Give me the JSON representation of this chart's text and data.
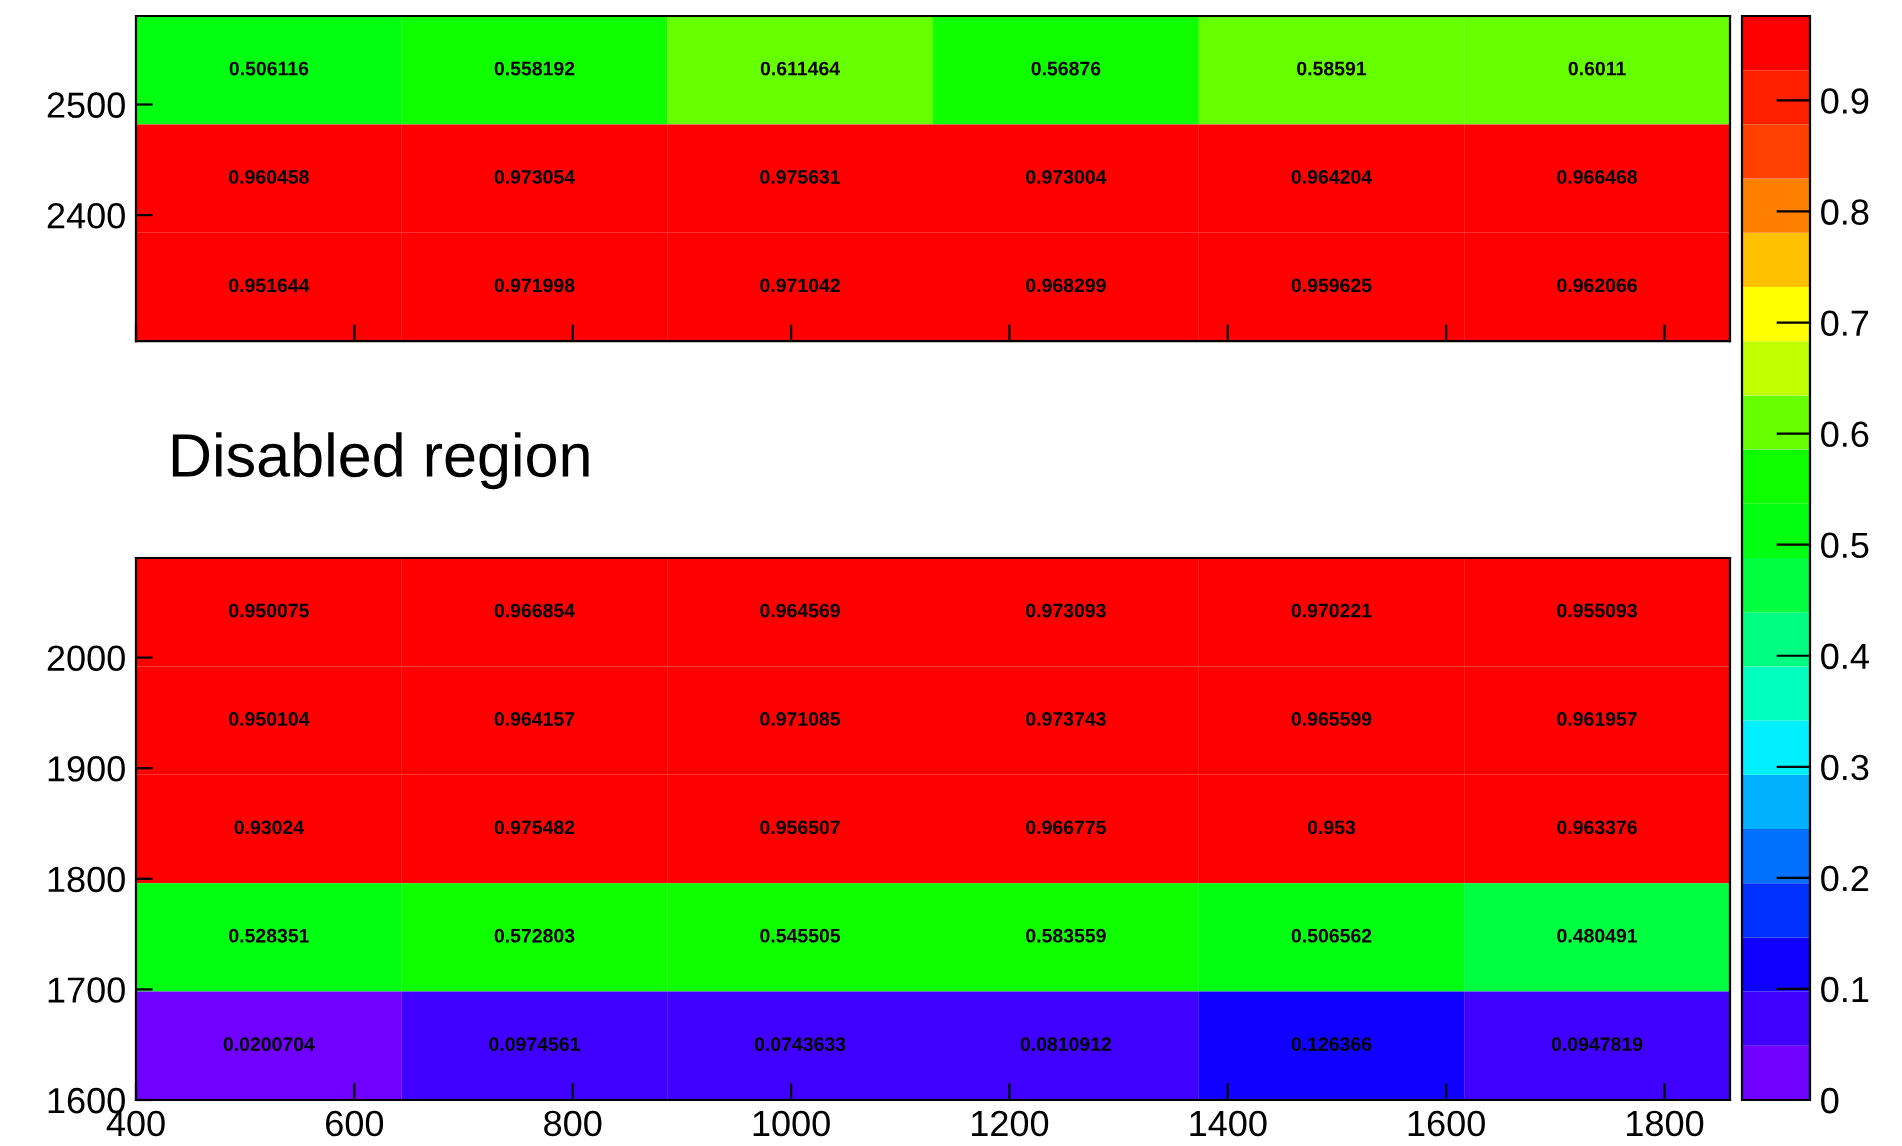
{
  "chart_data": [
    {
      "type": "heatmap",
      "x": [
        522,
        765,
        1008,
        1252,
        1495,
        1738
      ],
      "y": [
        2531,
        2433,
        2335
      ],
      "xlim": [
        400,
        1860
      ],
      "ylim": [
        2286,
        2580
      ],
      "xticks": [
        400,
        600,
        800,
        1000,
        1200,
        1400,
        1600,
        1800
      ],
      "yticks": [
        2400,
        2500
      ],
      "tick_labels": "y",
      "cells": [
        [
          0.506116,
          0.558192,
          0.611464,
          0.56876,
          0.58591,
          0.6011
        ],
        [
          0.960458,
          0.973054,
          0.975631,
          0.973004,
          0.964204,
          0.966468
        ],
        [
          0.951644,
          0.971998,
          0.971042,
          0.968299,
          0.959625,
          0.962066
        ]
      ],
      "data_labels": true,
      "colors": [
        "#7000ff",
        "#4000ff",
        "#1000ff",
        "#0030ff",
        "#0070ff",
        "#00b0ff",
        "#00f0ff",
        "#00ffc0",
        "#00ff80",
        "#00ff40",
        "#00ff10",
        "#10ff00",
        "#66ff00",
        "#c0ff00",
        "#ffff00",
        "#ffc000",
        "#ff8000",
        "#ff4000",
        "#ff2000",
        "#ff0000"
      ],
      "annotations": [
        "Disabled region"
      ]
    },
    {
      "type": "heatmap",
      "x": [
        522,
        765,
        1008,
        1252,
        1495,
        1738
      ],
      "y": [
        2041,
        1943,
        1845,
        1747,
        1649
      ],
      "xlim": [
        400,
        1860
      ],
      "ylim": [
        1600,
        2090
      ],
      "xticks": [
        400,
        600,
        800,
        1000,
        1200,
        1400,
        1600,
        1800
      ],
      "yticks": [
        1600,
        1700,
        1800,
        1900,
        2000
      ],
      "cells": [
        [
          0.950075,
          0.966854,
          0.964569,
          0.973093,
          0.970221,
          0.955093
        ],
        [
          0.950104,
          0.964157,
          0.971085,
          0.973743,
          0.965599,
          0.961957
        ],
        [
          0.93024,
          0.975482,
          0.956507,
          0.966775,
          0.953,
          0.963376
        ],
        [
          0.528351,
          0.572803,
          0.545505,
          0.583559,
          0.506562,
          0.480491
        ],
        [
          0.0200704,
          0.0974561,
          0.0743633,
          0.0810912,
          0.126366,
          0.0947819
        ]
      ],
      "data_labels": true,
      "clim": [
        0,
        0.976
      ],
      "cticks": [
        0,
        0.1,
        0.2,
        0.3,
        0.4,
        0.5,
        0.6,
        0.7,
        0.8,
        0.9
      ],
      "colors": [
        "#7000ff",
        "#4000ff",
        "#1000ff",
        "#0030ff",
        "#0070ff",
        "#00b0ff",
        "#00f0ff",
        "#00ffc0",
        "#00ff80",
        "#00ff40",
        "#00ff10",
        "#10ff00",
        "#66ff00",
        "#c0ff00",
        "#ffff00",
        "#ffc000",
        "#ff8000",
        "#ff4000",
        "#ff2000",
        "#ff0000"
      ]
    }
  ]
}
